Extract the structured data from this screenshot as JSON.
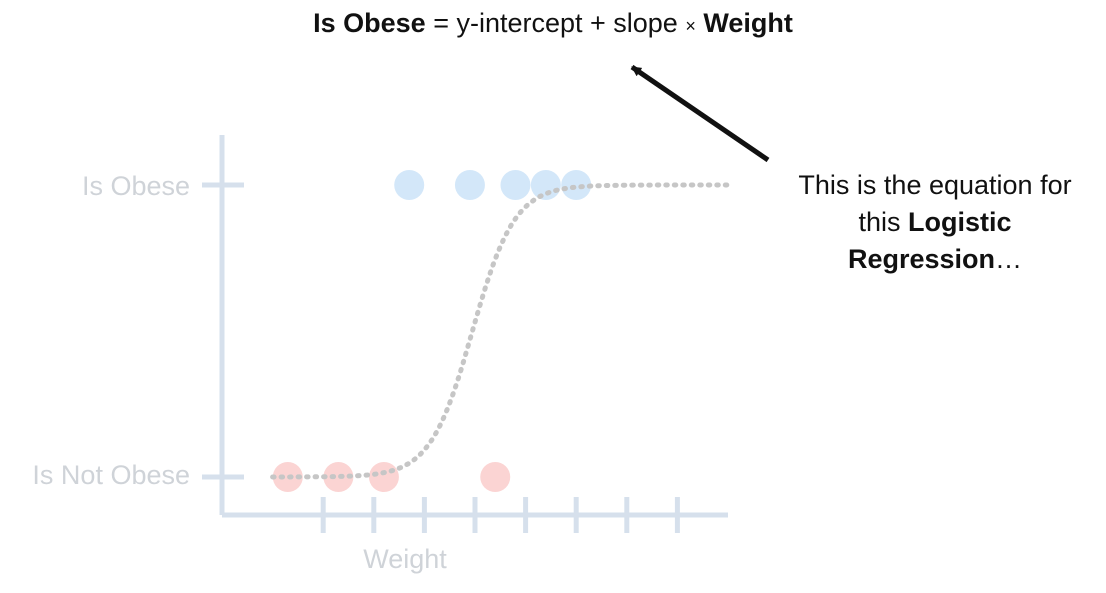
{
  "equation": {
    "lhs": "Is Obese",
    "eq": " = y-intercept + slope ",
    "times": "×",
    "rhs": "Weight"
  },
  "annotation": {
    "line1": "This is the equation for",
    "line2_prefix": "this ",
    "line2_bold": "Logistic",
    "line3_bold": "Regression",
    "line3_suffix": "…"
  },
  "chart_data": {
    "type": "scatter",
    "xlabel": "Weight",
    "ylabel": "",
    "y_categories": [
      "Is Not Obese",
      "Is Obese"
    ],
    "xlim": [
      0,
      10
    ],
    "x_ticks": [
      2,
      3,
      4,
      5,
      6,
      7,
      8,
      9
    ],
    "series": [
      {
        "name": "",
        "color": "#fbd4d3",
        "points": [
          {
            "x": 1.3,
            "y": 0
          },
          {
            "x": 2.3,
            "y": 0
          },
          {
            "x": 3.2,
            "y": 0
          },
          {
            "x": 5.4,
            "y": 0
          }
        ]
      },
      {
        "name": "",
        "color": "#d3e7f9",
        "points": [
          {
            "x": 3.7,
            "y": 1
          },
          {
            "x": 4.9,
            "y": 1
          },
          {
            "x": 5.8,
            "y": 1
          },
          {
            "x": 6.4,
            "y": 1
          },
          {
            "x": 7.0,
            "y": 1
          }
        ]
      }
    ],
    "curve": {
      "type": "logistic",
      "style": "dotted",
      "color": "#c6c6c6",
      "x_range": [
        1.0,
        10.0
      ],
      "midpoint": 4.95,
      "steepness": 2.4
    },
    "axis_color": "#d6e0ec"
  }
}
